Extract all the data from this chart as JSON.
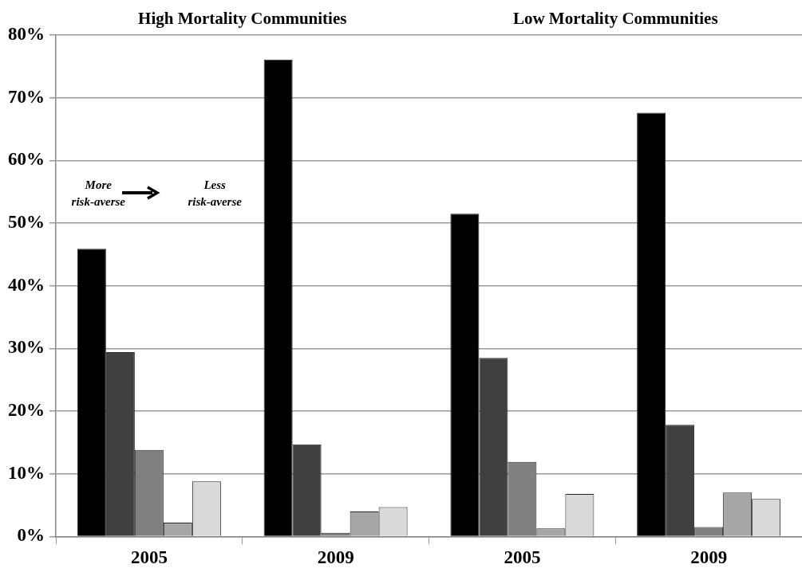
{
  "chart_data": {
    "type": "bar",
    "annotations": [
      "High Mortality Communities",
      "Low Mortality Communities",
      "More risk-averse",
      "Less risk-averse"
    ],
    "categories": [
      "2005",
      "2009",
      "2005",
      "2009"
    ],
    "series": [
      {
        "color": "#000000",
        "values": [
          45.9,
          76.1,
          51.5,
          67.6
        ]
      },
      {
        "color": "#404040",
        "values": [
          29.4,
          14.7,
          28.5,
          17.8
        ]
      },
      {
        "color": "#808080",
        "values": [
          13.8,
          0.6,
          11.9,
          1.5
        ]
      },
      {
        "color": "#a6a6a6",
        "values": [
          2.2,
          4.0,
          1.3,
          7.0
        ]
      },
      {
        "color": "#d9d9d9",
        "values": [
          8.8,
          4.7,
          6.8,
          6.0
        ]
      }
    ],
    "ylim": [
      0,
      80
    ],
    "yticks": [
      {
        "value": 0,
        "label": "0%"
      },
      {
        "value": 10,
        "label": "10%"
      },
      {
        "value": 20,
        "label": "20%"
      },
      {
        "value": 30,
        "label": "30%"
      },
      {
        "value": 40,
        "label": "40%"
      },
      {
        "value": 50,
        "label": "50%"
      },
      {
        "value": 60,
        "label": "60%"
      },
      {
        "value": 70,
        "label": "70%"
      },
      {
        "value": 80,
        "label": "80%"
      }
    ],
    "grid": "y"
  }
}
